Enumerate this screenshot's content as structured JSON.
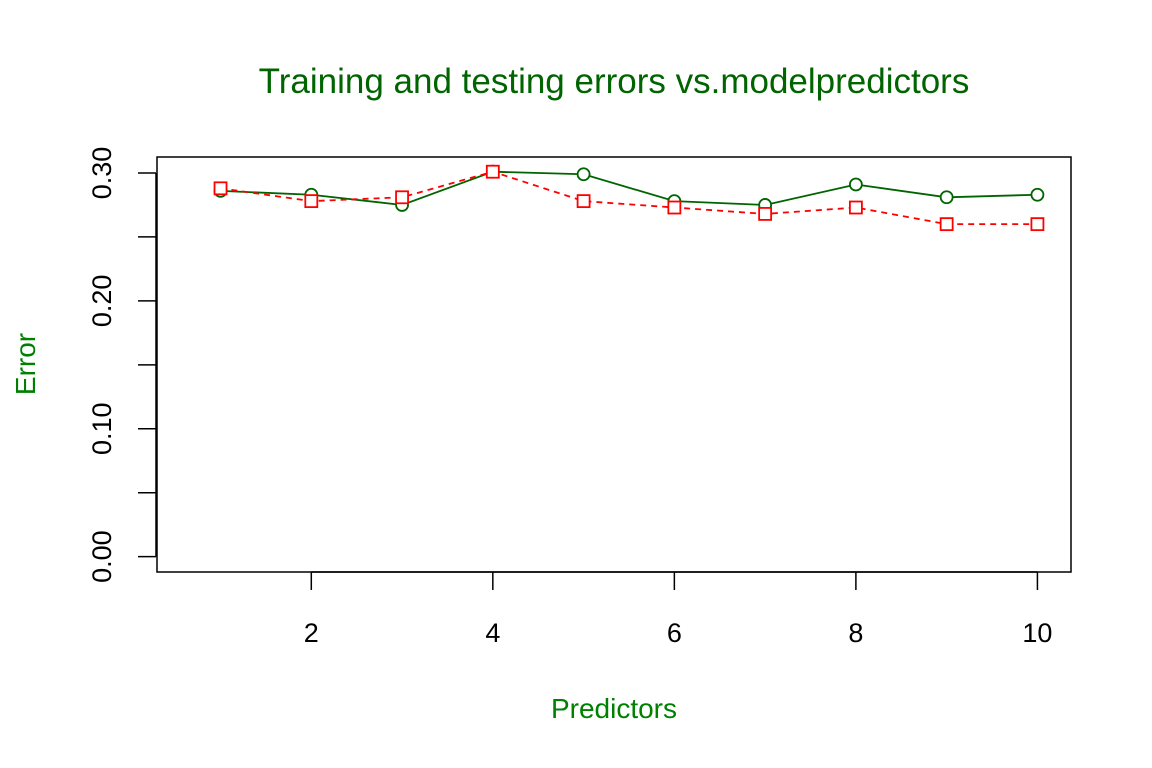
{
  "chart_data": {
    "type": "line",
    "title": "Training and testing errors vs.modelpredictors",
    "xlabel": "Predictors",
    "ylabel": "Error",
    "x": [
      1,
      2,
      3,
      4,
      5,
      6,
      7,
      8,
      9,
      10
    ],
    "xlim": [
      0.3,
      10.37
    ],
    "ylim": [
      -0.012,
      0.3125
    ],
    "x_ticks": [
      2,
      4,
      6,
      8,
      10
    ],
    "x_tick_labels": [
      "2",
      "4",
      "6",
      "8",
      "10"
    ],
    "y_ticks": [
      0.0,
      0.05,
      0.1,
      0.15,
      0.2,
      0.25,
      0.3
    ],
    "y_tick_labels": [
      "0.00",
      "",
      "0.10",
      "",
      "0.20",
      "",
      "0.30"
    ],
    "grid": false,
    "legend": "none",
    "series": [
      {
        "values": [
          0.286,
          0.283,
          0.275,
          0.301,
          0.299,
          0.278,
          0.275,
          0.291,
          0.281,
          0.283
        ],
        "color": "#006400",
        "line_style": "solid",
        "marker": "circle"
      },
      {
        "values": [
          0.288,
          0.278,
          0.281,
          0.301,
          0.278,
          0.273,
          0.268,
          0.273,
          0.26,
          0.26
        ],
        "color": "#FF0000",
        "line_style": "dashed",
        "marker": "square"
      }
    ],
    "colors": {
      "title": "#006400",
      "axis_labels": "#008000",
      "axes": "#000000"
    }
  }
}
